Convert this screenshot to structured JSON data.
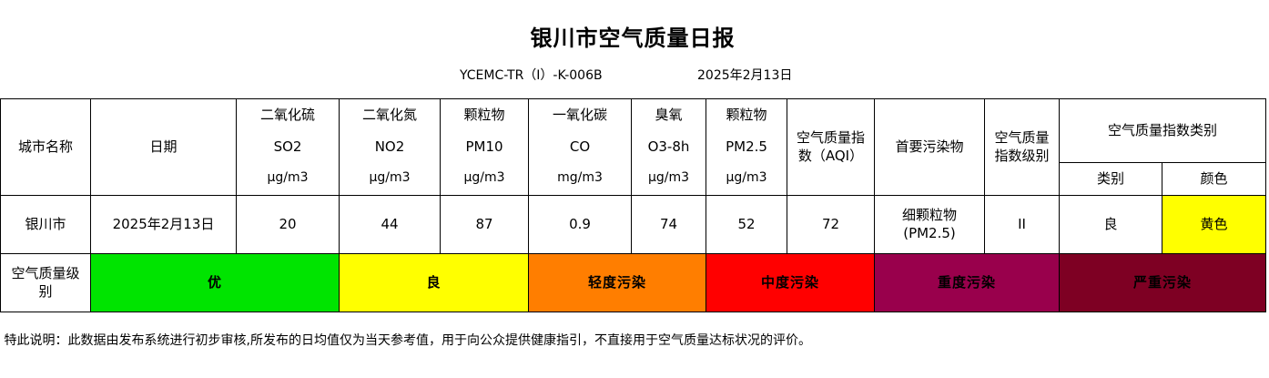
{
  "header": {
    "title": "银川市空气质量日报",
    "code": "YCEMC-TR（I）-K-006B",
    "date": "2025年2月13日"
  },
  "columns": {
    "city": "城市名称",
    "date": "日期",
    "so2": {
      "name": "二氧化硫",
      "symbol": "SO2",
      "unit": "μg/m3"
    },
    "no2": {
      "name": "二氧化氮",
      "symbol": "NO2",
      "unit": "μg/m3"
    },
    "pm10": {
      "name": "颗粒物",
      "symbol": "PM10",
      "unit": "μg/m3"
    },
    "co": {
      "name": "一氧化碳",
      "symbol": "CO",
      "unit": "mg/m3"
    },
    "o3": {
      "name": "臭氧",
      "symbol": "O3-8h",
      "unit": "μg/m3"
    },
    "pm25": {
      "name": "颗粒物",
      "symbol": "PM2.5",
      "unit": "μg/m3"
    },
    "aqi_line1": "空气质量指",
    "aqi_line2": "数（AQI）",
    "primary": "首要污染物",
    "level_line1": "空气质量",
    "level_line2": "指数级别",
    "category_group": "空气质量指数类别",
    "category": "类别",
    "color": "颜色"
  },
  "record": {
    "city": "银川市",
    "date": "2025年2月13日",
    "so2": "20",
    "no2": "44",
    "pm10": "87",
    "co": "0.9",
    "o3": "74",
    "pm25": "52",
    "aqi": "72",
    "primary_line1": "细颗粒物",
    "primary_line2": "(PM2.5)",
    "level": "II",
    "category": "良",
    "color": "黄色",
    "color_hex": "#ffff00"
  },
  "levels": {
    "label_line1": "空气质量级",
    "label_line2": "别",
    "items": [
      {
        "label": "优",
        "color": "#00e400"
      },
      {
        "label": "良",
        "color": "#ffff00"
      },
      {
        "label": "轻度污染",
        "color": "#ff7e00"
      },
      {
        "label": "中度污染",
        "color": "#ff0000"
      },
      {
        "label": "重度污染",
        "color": "#99004c"
      },
      {
        "label": "严重污染",
        "color": "#7e0023"
      }
    ]
  },
  "note": "特此说明：此数据由发布系统进行初步审核,所发布的日均值仅为当天参考值，用于向公众提供健康指引，不直接用于空气质量达标状况的评价。"
}
